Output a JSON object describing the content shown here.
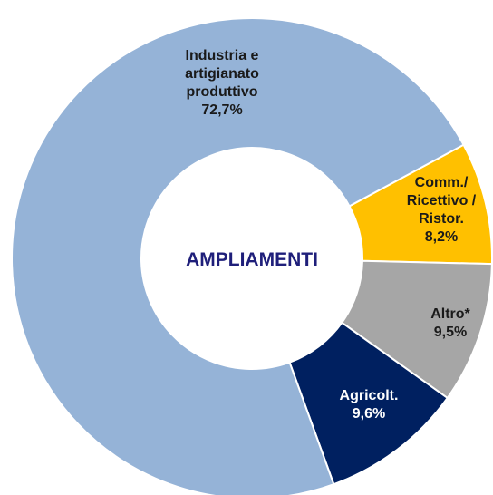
{
  "chart_data": {
    "type": "donut",
    "center_text": "AMPLIAMENTI",
    "categories": [
      "Comm./ Ricettivo / Ristor.",
      "Altro*",
      "Agricolt.",
      "Industria e artigianato produttivo"
    ],
    "values": [
      8.2,
      9.5,
      9.6,
      72.7
    ],
    "value_labels": [
      "8,2%",
      "9,5%",
      "9,6%",
      "72,7%"
    ],
    "colors": [
      "#ffc000",
      "#a6a6a6",
      "#002060",
      "#95b3d7"
    ]
  }
}
